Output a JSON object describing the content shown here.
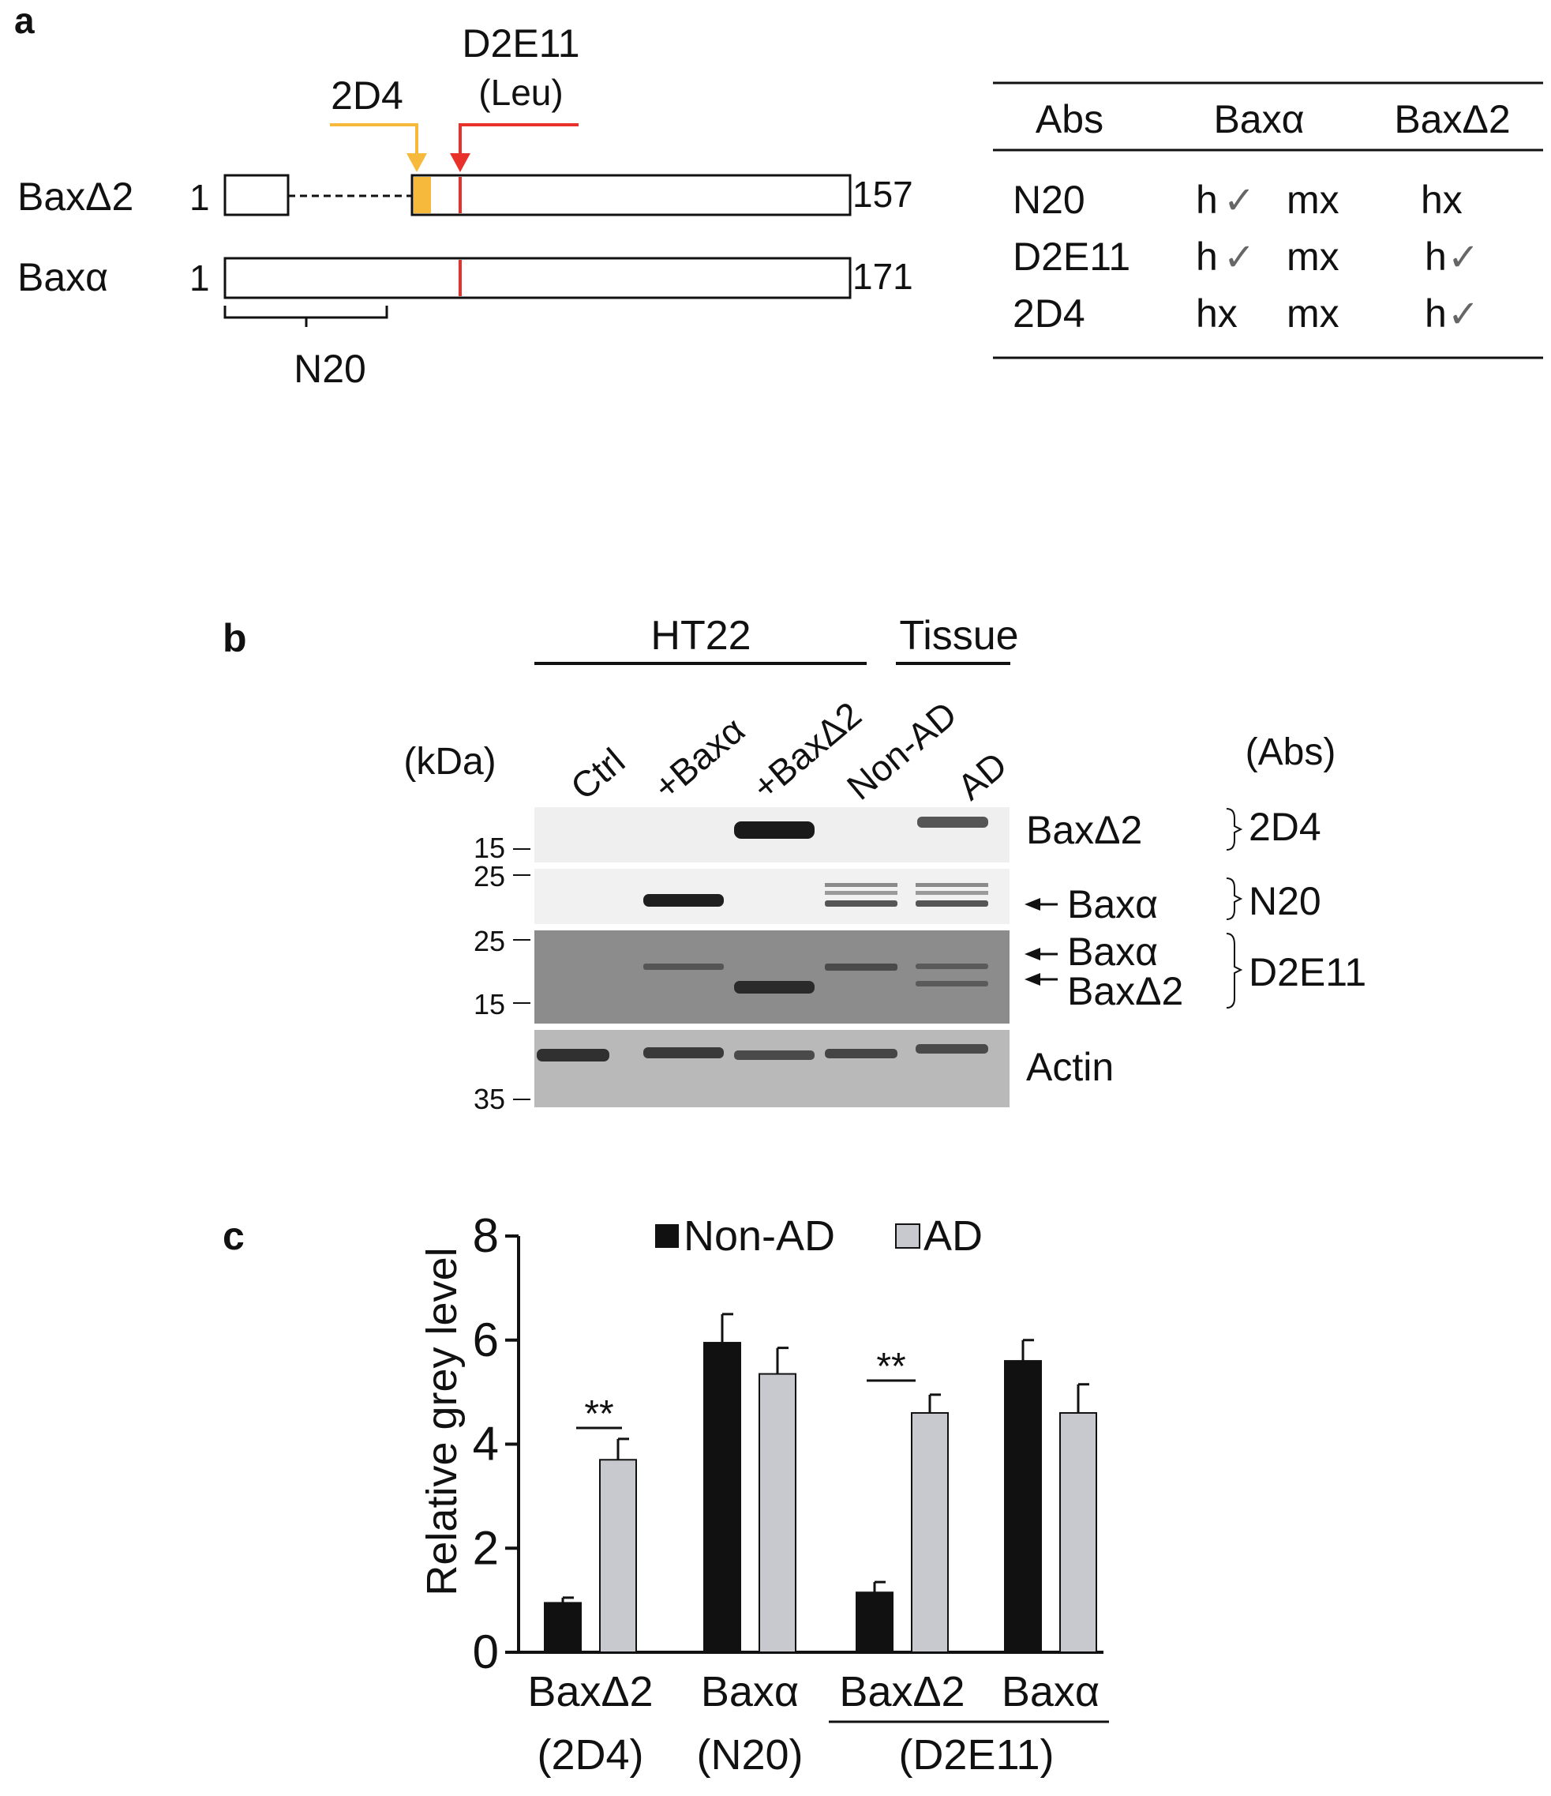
{
  "colors": {
    "orange": "#f6b93b",
    "red": "#e8312a",
    "black": "#111111",
    "grey": "#c8c9ce",
    "check": "#666666"
  },
  "panel_a": {
    "label": "a",
    "ab_2d4": "2D4",
    "ab_d2e11": "D2E11",
    "ab_d2e11_sub": "(Leu)",
    "row1_name": "BaxΔ2",
    "row1_start": "1",
    "row1_end": "157",
    "row2_name": "Baxα",
    "row2_start": "1",
    "row2_end": "171",
    "n20_label": "N20",
    "table": {
      "headers": [
        "Abs",
        "Baxα",
        "BaxΔ2"
      ],
      "rows": [
        {
          "ab": "N20",
          "h": "h",
          "h_mark": "✓",
          "m": "mx",
          "d": "hx",
          "d_mark": ""
        },
        {
          "ab": "D2E11",
          "h": "h",
          "h_mark": "✓",
          "m": "mx",
          "d": "h",
          "d_mark": "✓"
        },
        {
          "ab": "2D4",
          "h": "hx",
          "h_mark": "",
          "m": "mx",
          "d": "h",
          "d_mark": "✓"
        }
      ]
    }
  },
  "panel_b": {
    "label": "b",
    "group_ht22": "HT22",
    "group_tissue": "Tissue",
    "kda": "(kDa)",
    "abs": "(Abs)",
    "lanes": [
      "Ctrl",
      "+Baxα",
      "+BaxΔ2",
      "Non-AD",
      "AD"
    ],
    "markers": {
      "b1": [
        "15"
      ],
      "b2": [
        "25"
      ],
      "b3": [
        "25",
        "15"
      ],
      "b4": [
        "35"
      ]
    },
    "band_labels": {
      "b1": "BaxΔ2",
      "b2": "Baxα",
      "b3a": "Baxα",
      "b3b": "BaxΔ2",
      "b4": "Actin"
    },
    "antibodies": {
      "b1": "2D4",
      "b2": "N20",
      "b3": "D2E11"
    }
  },
  "panel_c": {
    "label": "c",
    "legend": {
      "nonad": "Non-AD",
      "ad": "AD"
    },
    "sig": "**",
    "group_sub": {
      "g1": "(2D4)",
      "g2": "(N20)",
      "g34": "(D2E11)"
    }
  },
  "chart_data": {
    "type": "bar",
    "categories": [
      "BaxΔ2",
      "Baxα",
      "BaxΔ2",
      "Baxα"
    ],
    "series": [
      {
        "name": "Non-AD",
        "values": [
          0.95,
          5.95,
          1.15,
          5.6
        ],
        "errors": [
          0.1,
          0.55,
          0.2,
          0.4
        ]
      },
      {
        "name": "AD",
        "values": [
          3.7,
          5.35,
          4.6,
          4.6
        ],
        "errors": [
          0.4,
          0.5,
          0.35,
          0.55
        ]
      }
    ],
    "ylabel": "Relative grey level",
    "ylim": [
      0,
      8
    ],
    "yticks": [
      "0",
      "2",
      "4",
      "6",
      "8"
    ],
    "grid": false,
    "legend_position": "top",
    "annotations": [
      "**",
      "**"
    ]
  }
}
